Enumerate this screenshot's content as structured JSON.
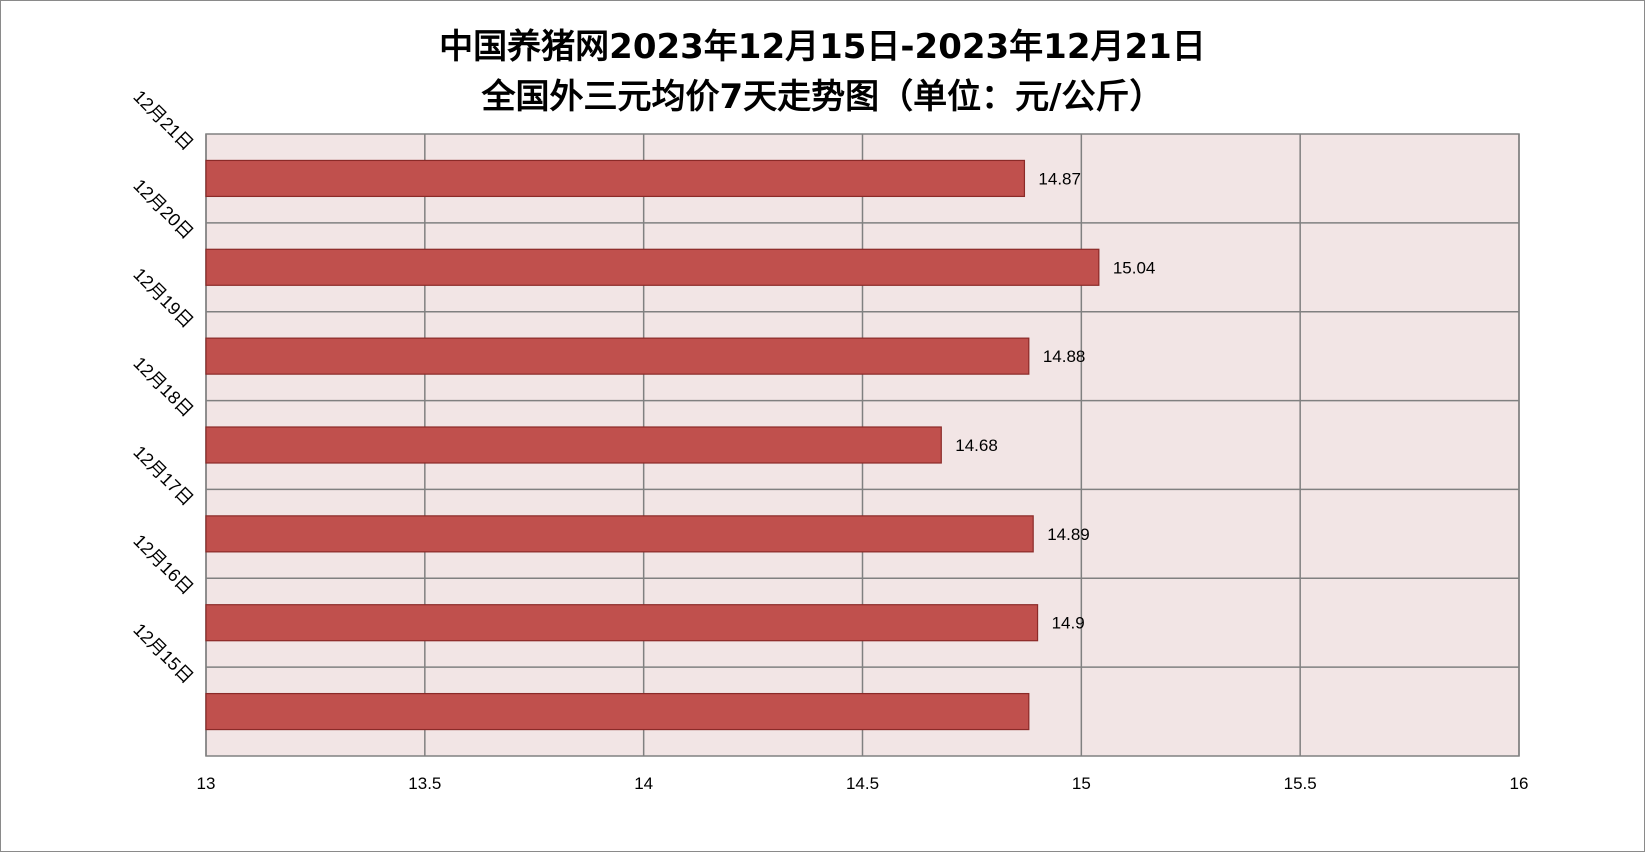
{
  "chart_data": {
    "type": "bar",
    "orientation": "horizontal",
    "title": [
      "中国养猪网2023年12月15日-2023年12月21日",
      "全国外三元均价7天走势图（单位：元/公斤）"
    ],
    "categories": [
      "12月21日",
      "12月20日",
      "12月19日",
      "12月18日",
      "12月17日",
      "12月16日",
      "12月15日"
    ],
    "values": [
      14.87,
      15.04,
      14.88,
      14.68,
      14.89,
      14.9,
      14.88
    ],
    "data_labels": [
      "14.87",
      "15.04",
      "14.88",
      "14.68",
      "14.89",
      "14.9",
      ""
    ],
    "xlim": [
      13,
      16
    ],
    "x_ticks": [
      13,
      13.5,
      14,
      14.5,
      15,
      15.5,
      16
    ],
    "x_tick_labels": [
      "13",
      "13.5",
      "14",
      "14.5",
      "15",
      "15.5",
      "16"
    ],
    "grid": true,
    "colors": {
      "bar_fill": "#c0504d",
      "bar_stroke": "#8b2a28",
      "plot_background": "#f2e5e5",
      "grid": "#808080"
    }
  }
}
